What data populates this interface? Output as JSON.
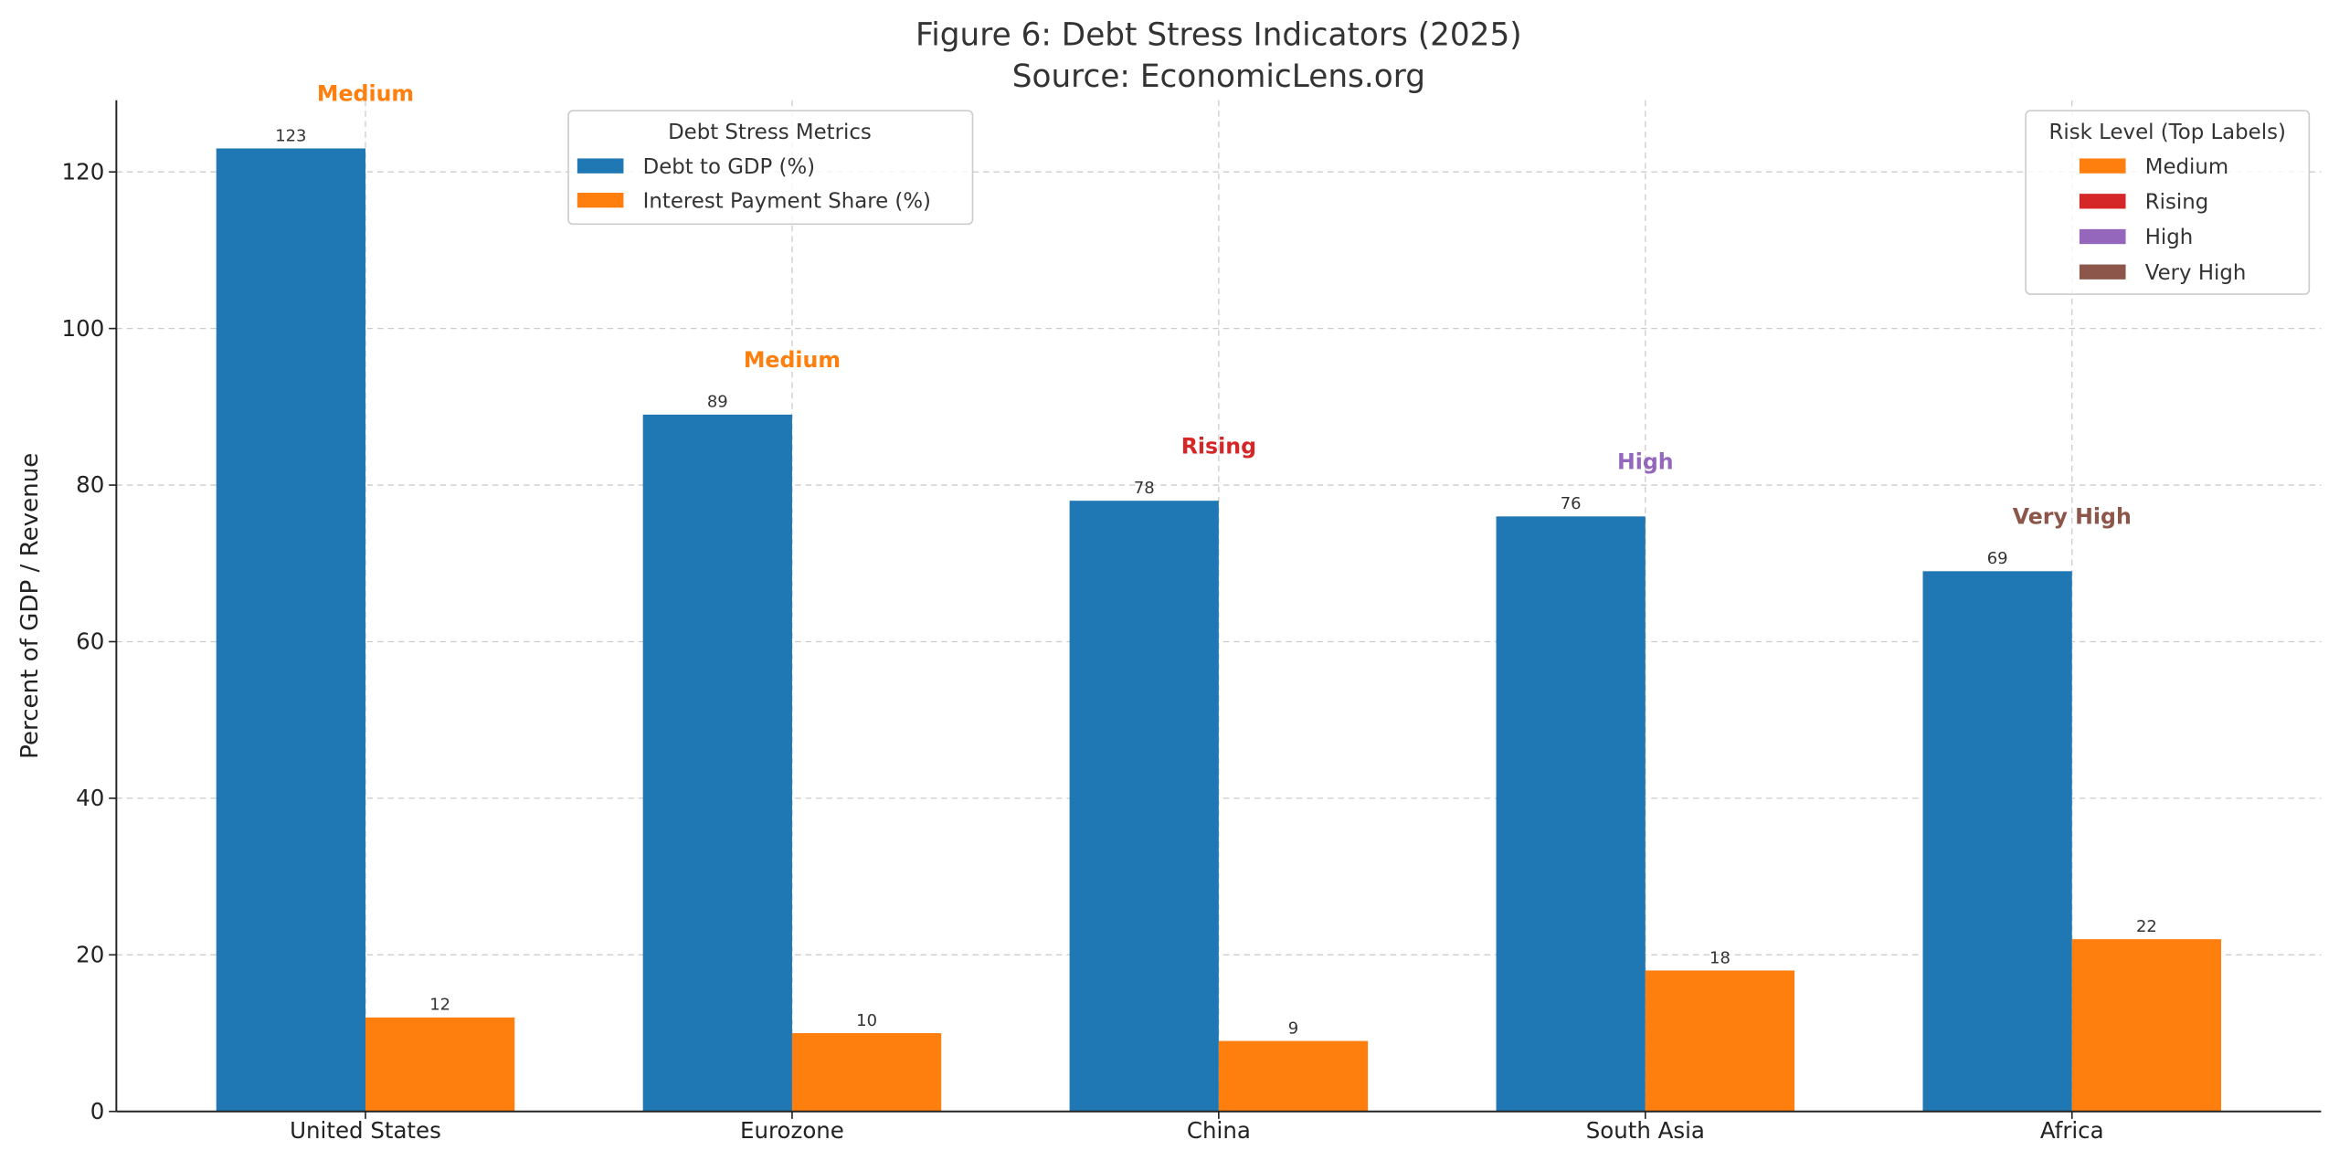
{
  "chart_data": {
    "type": "bar",
    "title": "Figure 6: Debt Stress Indicators (2025)",
    "subtitle": "Source: EconomicLens.org",
    "xlabel": "",
    "ylabel": "Percent of GDP / Revenue",
    "ylim": [
      0,
      129.15
    ],
    "yticks": [
      0,
      20,
      40,
      60,
      80,
      100,
      120
    ],
    "grid": true,
    "categories": [
      "United States",
      "Eurozone",
      "China",
      "South Asia",
      "Africa"
    ],
    "series": [
      {
        "name": "Debt to GDP (%)",
        "color": "#1f77b4",
        "values": [
          123,
          89,
          78,
          76,
          69
        ]
      },
      {
        "name": "Interest Payment Share (%)",
        "color": "#ff7f0e",
        "values": [
          12,
          10,
          9,
          18,
          22
        ]
      }
    ],
    "risk_labels": [
      "Medium",
      "Medium",
      "Rising",
      "High",
      "Very High"
    ],
    "series_legend": {
      "title": "Debt Stress Metrics",
      "placement": "top-left"
    },
    "risk_legend": {
      "title": "Risk Level (Top Labels)",
      "placement": "top-right",
      "entries": [
        {
          "label": "Medium",
          "color": "#ff7f0e"
        },
        {
          "label": "Rising",
          "color": "#d62728"
        },
        {
          "label": "High",
          "color": "#9467bd"
        },
        {
          "label": "Very High",
          "color": "#8c564b"
        }
      ]
    }
  }
}
